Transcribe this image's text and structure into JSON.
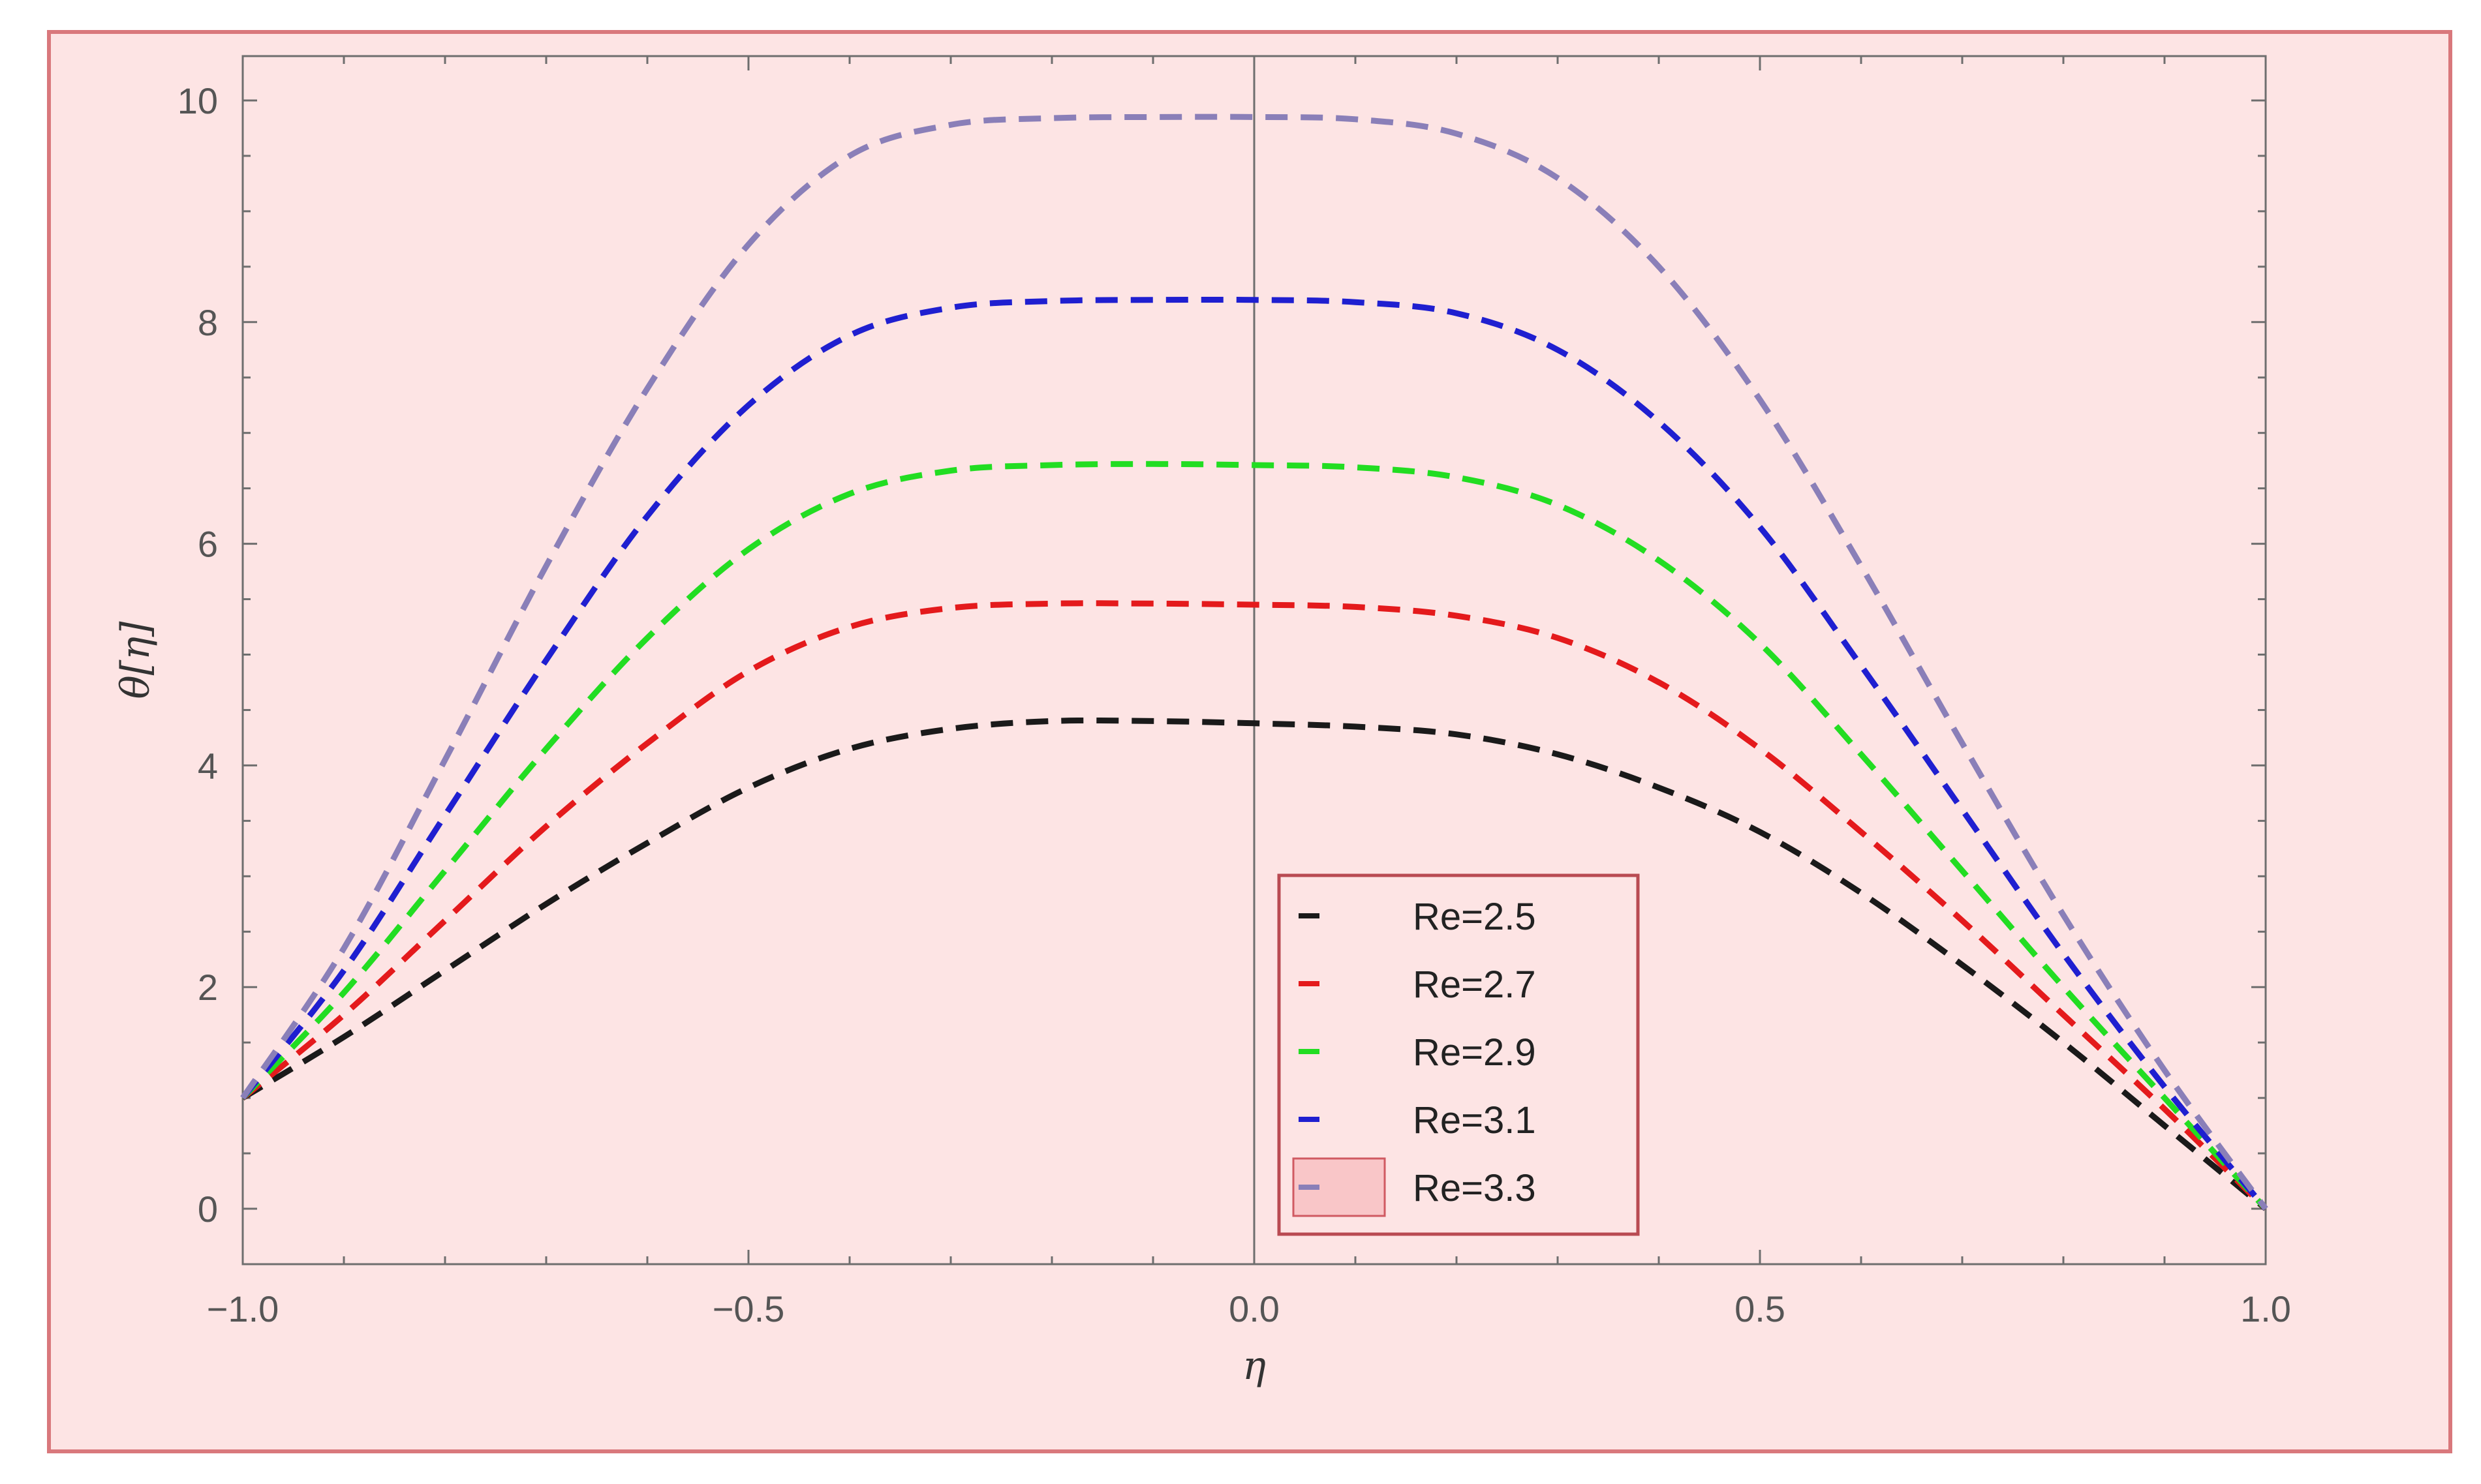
{
  "chart_data": {
    "type": "line",
    "title": "",
    "xlabel": "η",
    "ylabel": "θ[η]",
    "xlim": [
      -1.0,
      1.0
    ],
    "ylim": [
      -0.5,
      10.4
    ],
    "xticks": [
      -1.0,
      -0.5,
      0.0,
      0.5,
      1.0
    ],
    "xtick_labels": [
      "−1.0",
      "−0.5",
      "0.0",
      "0.5",
      "1.0"
    ],
    "yticks": [
      0,
      2,
      4,
      6,
      8,
      10
    ],
    "ytick_labels": [
      "0",
      "2",
      "4",
      "6",
      "8",
      "10"
    ],
    "grid": false,
    "legend_position": "bottom-center",
    "line_style": "dashed",
    "x": [
      -1.0,
      -0.9,
      -0.8,
      -0.7,
      -0.6,
      -0.5,
      -0.4,
      -0.3,
      -0.2,
      -0.1,
      0.0,
      0.1,
      0.2,
      0.3,
      0.4,
      0.5,
      0.6,
      0.7,
      0.8,
      0.9,
      1.0
    ],
    "series": [
      {
        "name": "Re=2.5",
        "color": "#1a1a1a",
        "values": [
          1.0,
          1.55,
          2.15,
          2.75,
          3.3,
          3.8,
          4.15,
          4.33,
          4.4,
          4.4,
          4.38,
          4.35,
          4.28,
          4.1,
          3.8,
          3.4,
          2.85,
          2.2,
          1.5,
          0.75,
          0.0
        ]
      },
      {
        "name": "Re=2.7",
        "color": "#e41a1c",
        "values": [
          1.0,
          1.75,
          2.6,
          3.45,
          4.2,
          4.85,
          5.25,
          5.42,
          5.46,
          5.46,
          5.45,
          5.43,
          5.35,
          5.15,
          4.75,
          4.15,
          3.4,
          2.6,
          1.75,
          0.9,
          0.0
        ]
      },
      {
        "name": "Re=2.9",
        "color": "#22dd22",
        "values": [
          1.0,
          1.95,
          3.05,
          4.15,
          5.15,
          5.95,
          6.45,
          6.66,
          6.71,
          6.72,
          6.71,
          6.69,
          6.6,
          6.35,
          5.85,
          5.1,
          4.1,
          3.05,
          2.0,
          1.0,
          0.0
        ]
      },
      {
        "name": "Re=3.1",
        "color": "#1f1fd0",
        "values": [
          1.0,
          2.15,
          3.55,
          4.95,
          6.25,
          7.25,
          7.88,
          8.13,
          8.19,
          8.2,
          8.2,
          8.18,
          8.08,
          7.75,
          7.1,
          6.15,
          4.9,
          3.6,
          2.3,
          1.1,
          0.0
        ]
      },
      {
        "name": "Re=3.3",
        "color": "#8a7fb8",
        "values": [
          1.0,
          2.35,
          4.05,
          5.8,
          7.4,
          8.7,
          9.5,
          9.78,
          9.84,
          9.85,
          9.85,
          9.83,
          9.7,
          9.3,
          8.5,
          7.3,
          5.8,
          4.2,
          2.65,
          1.25,
          0.0
        ]
      }
    ]
  }
}
